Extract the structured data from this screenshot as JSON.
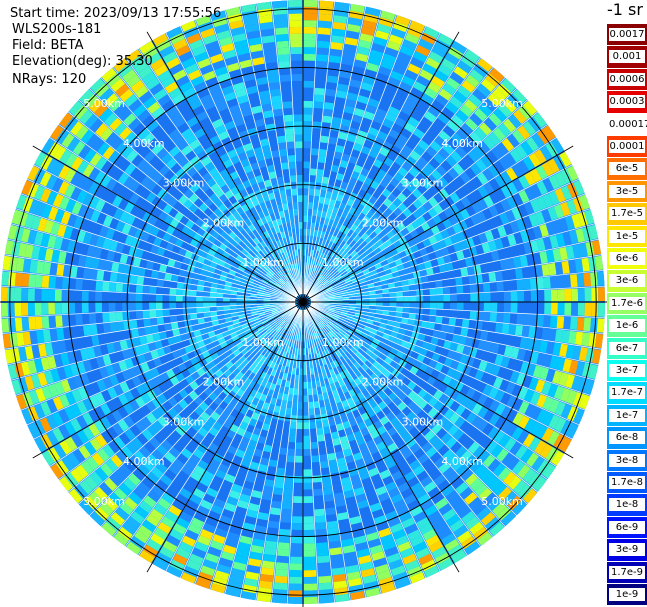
{
  "header": {
    "start_time": "Start time: 2023/09/13 17:55:56",
    "instrument": "WLS200s-181",
    "field": "Field: BETA",
    "elevation": "Elevation(deg): 35.30",
    "nrays": "NRays: 120"
  },
  "colorbar": {
    "unit_label": "-1 sr",
    "entries": [
      {
        "label": "0.0017",
        "color": "#8b0000"
      },
      {
        "label": "0.001",
        "color": "#a00000"
      },
      {
        "label": "0.0006",
        "color": "#c80000"
      },
      {
        "label": "0.0003",
        "color": "#e60000"
      },
      {
        "label": "0.00017",
        "color": "#ffffff"
      },
      {
        "label": "0.0001",
        "color": "#ff3c00"
      },
      {
        "label": "6e-5",
        "color": "#ff6e00"
      },
      {
        "label": "3e-5",
        "color": "#ff9600"
      },
      {
        "label": "1.7e-5",
        "color": "#ffc800"
      },
      {
        "label": "1e-5",
        "color": "#ffe600"
      },
      {
        "label": "6e-6",
        "color": "#f0ff0a"
      },
      {
        "label": "3e-6",
        "color": "#c8ff32"
      },
      {
        "label": "1.7e-6",
        "color": "#96ff64"
      },
      {
        "label": "1e-6",
        "color": "#64ff96"
      },
      {
        "label": "6e-7",
        "color": "#32ffc8"
      },
      {
        "label": "3e-7",
        "color": "#0affee"
      },
      {
        "label": "1.7e-7",
        "color": "#00dcff"
      },
      {
        "label": "1e-7",
        "color": "#00b4ff"
      },
      {
        "label": "6e-8",
        "color": "#0096ff"
      },
      {
        "label": "3e-8",
        "color": "#0078ff"
      },
      {
        "label": "1.7e-8",
        "color": "#005aff"
      },
      {
        "label": "1e-8",
        "color": "#003cff"
      },
      {
        "label": "6e-9",
        "color": "#0014ff"
      },
      {
        "label": "3e-9",
        "color": "#0000e6"
      },
      {
        "label": "1.7e-9",
        "color": "#0000b4"
      },
      {
        "label": "1e-9",
        "color": "#000080"
      }
    ]
  },
  "plot": {
    "range_labels": [
      "1.00km",
      "2.00km",
      "3.00km",
      "4.00km",
      "5.00km"
    ],
    "nrays": 120,
    "max_range_km": 5.0
  }
}
